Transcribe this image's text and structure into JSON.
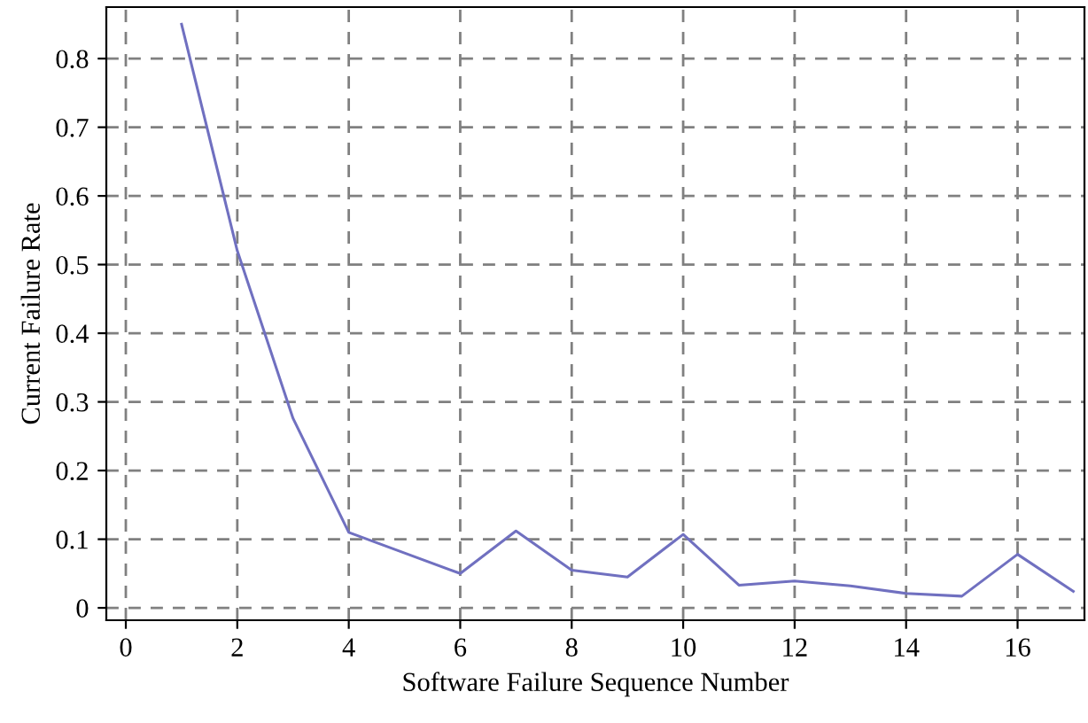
{
  "chart_data": {
    "type": "line",
    "xlabel": "Software Failure Sequence Number",
    "ylabel": "Current Failure Rate",
    "x": [
      1,
      2,
      3,
      4,
      5,
      6,
      7,
      8,
      9,
      10,
      11,
      12,
      13,
      14,
      15,
      16,
      17
    ],
    "series": [
      {
        "color": "#7070c0",
        "values": [
          0.85,
          0.52,
          0.276,
          0.11,
          0.08,
          0.05,
          0.112,
          0.055,
          0.045,
          0.107,
          0.033,
          0.039,
          0.032,
          0.021,
          0.017,
          0.078,
          0.024
        ]
      }
    ],
    "xlim": [
      -0.35,
      17.2
    ],
    "ylim": [
      -0.018,
      0.875
    ],
    "xticks": [
      0,
      2,
      4,
      6,
      8,
      10,
      12,
      14,
      16
    ],
    "yticks": [
      0,
      0.1,
      0.2,
      0.3,
      0.4,
      0.5,
      0.6,
      0.7,
      0.8
    ],
    "grid": true,
    "marker": "none",
    "line_style": "solid"
  }
}
